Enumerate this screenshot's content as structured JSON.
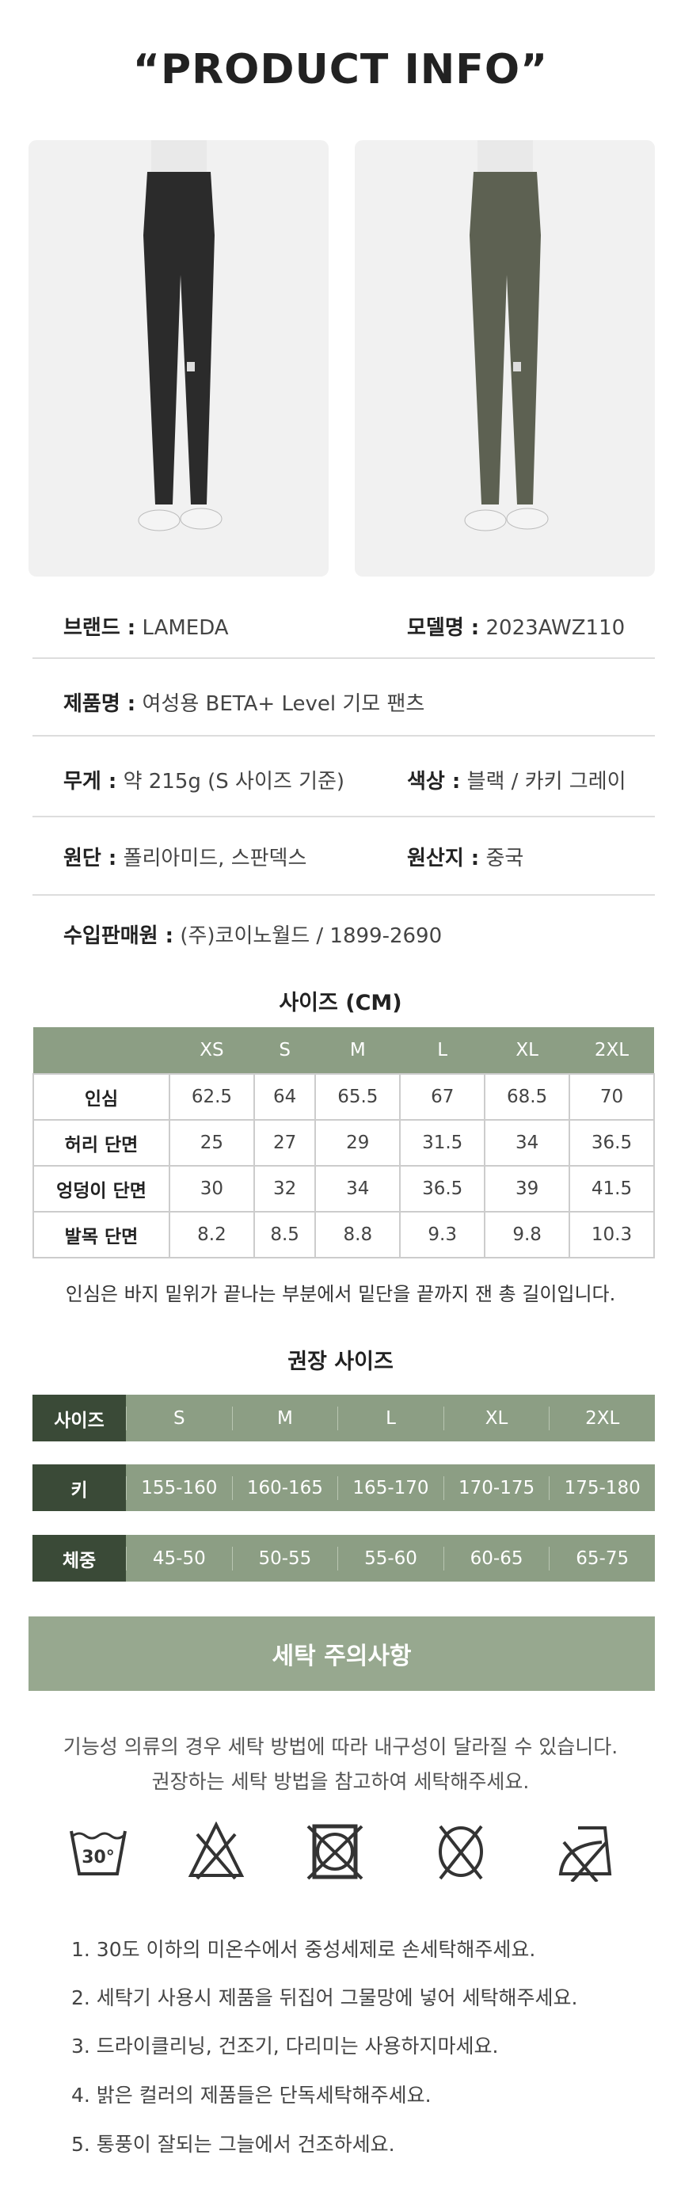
{
  "title": "“PRODUCT INFO”",
  "photos": [
    {
      "color": "black",
      "hex": "#2b2b2b"
    },
    {
      "color": "khaki",
      "hex": "#5d6152"
    }
  ],
  "info": {
    "brand_label": "브랜드 :",
    "brand": "LAMEDA",
    "model_label": "모델명 :",
    "model": "2023AWZ110",
    "name_label": "제품명 :",
    "name": "여성용 BETA+ Level 기모 팬츠",
    "weight_label": "무게 :",
    "weight": "약 215g (S 사이즈 기준)",
    "color_label": "색상 :",
    "color": "블랙 / 카키 그레이",
    "fabric_label": "원단 :",
    "fabric": "폴리아미드, 스판덱스",
    "origin_label": "원산지 :",
    "origin": "중국",
    "importer_label": "수입판매원 :",
    "importer": "(주)코이노월드 / 1899-2690"
  },
  "size_chart": {
    "title": "사이즈 (CM)",
    "headers": [
      "",
      "XS",
      "S",
      "M",
      "L",
      "XL",
      "2XL"
    ],
    "rows": [
      {
        "label": "인심",
        "values": [
          "62.5",
          "64",
          "65.5",
          "67",
          "68.5",
          "70"
        ]
      },
      {
        "label": "허리 단면",
        "values": [
          "25",
          "27",
          "29",
          "31.5",
          "34",
          "36.5"
        ]
      },
      {
        "label": "엉덩이 단면",
        "values": [
          "30",
          "32",
          "34",
          "36.5",
          "39",
          "41.5"
        ]
      },
      {
        "label": "발목 단면",
        "values": [
          "8.2",
          "8.5",
          "8.8",
          "9.3",
          "9.8",
          "10.3"
        ]
      }
    ],
    "note": "인심은 바지 밑위가 끝나는 부분에서 밑단을 끝까지 잰 총 길이입니다."
  },
  "recommend": {
    "title": "권장 사이즈",
    "rows": [
      {
        "label": "사이즈",
        "values": [
          "S",
          "M",
          "L",
          "XL",
          "2XL"
        ]
      },
      {
        "label": "키",
        "values": [
          "155-160",
          "160-165",
          "165-170",
          "170-175",
          "175-180"
        ]
      },
      {
        "label": "체중",
        "values": [
          "45-50",
          "50-55",
          "55-60",
          "60-65",
          "65-75"
        ]
      }
    ]
  },
  "wash": {
    "title": "세탁 주의사항",
    "intro1": "기능성 의류의 경우 세탁 방법에 따라 내구성이 달라질 수 있습니다.",
    "intro2": "권장하는 세탁 방법을 참고하여 세탁해주세요.",
    "icon_temp": "30°",
    "icons": [
      "hand-wash-30-icon",
      "no-bleach-icon",
      "no-tumble-dry-icon",
      "no-dry-clean-icon",
      "no-iron-icon"
    ],
    "items": [
      "1. 30도 이하의 미온수에서 중성세제로 손세탁해주세요.",
      "2. 세탁기 사용시 제품을 뒤집어 그물망에 넣어 세탁해주세요.",
      "3. 드라이클리닝, 건조기, 다리미는 사용하지마세요.",
      "4. 밝은 컬러의 제품들은 단독세탁해주세요.",
      "5. 통풍이 잘되는 그늘에서 건조하세요."
    ]
  },
  "colors": {
    "green": "#8c9e84",
    "dark_green": "#3a4a37",
    "wash_header": "#97a88f"
  }
}
